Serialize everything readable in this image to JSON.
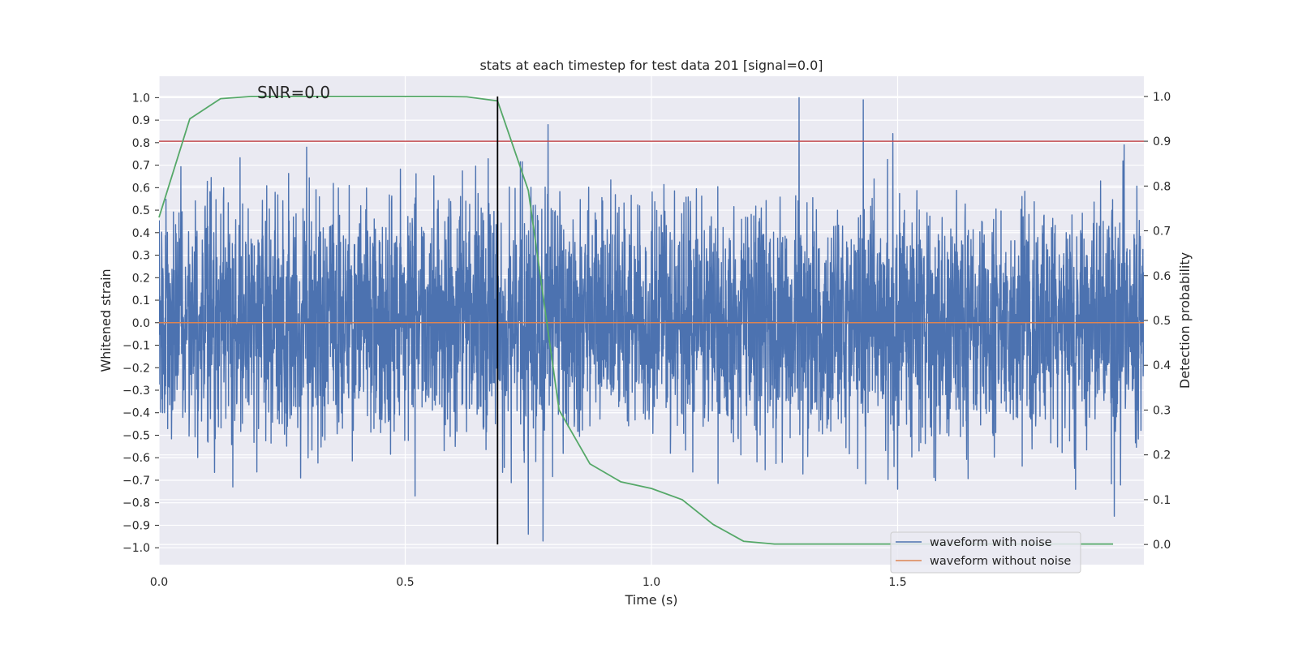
{
  "chart_data": {
    "type": "line",
    "title": "stats at each timestep for test data 201 [signal=0.0]",
    "xlabel": "Time (s)",
    "ylabel": "Whitened strain",
    "y2label": "Detection probability",
    "xlim": [
      0.0,
      2.0
    ],
    "ylim": [
      -1.075,
      1.095
    ],
    "y2lim": [
      -0.045,
      1.045
    ],
    "xticks": [
      0.0,
      0.5,
      1.0,
      1.5
    ],
    "xtick_labels": [
      "0.0",
      "0.5",
      "1.0",
      "1.5"
    ],
    "yticks": [
      1.0,
      0.9,
      0.8,
      0.7,
      0.6,
      0.5,
      0.4,
      0.3,
      0.2,
      0.1,
      0.0,
      -0.1,
      -0.2,
      -0.3,
      -0.4,
      -0.5,
      -0.6,
      -0.7,
      -0.8,
      -0.9,
      -1.0
    ],
    "ytick_labels": [
      "1.0",
      "0.9",
      "0.8",
      "0.7",
      "0.6",
      "0.5",
      "0.4",
      "0.3",
      "0.2",
      "0.1",
      "0.0",
      "−0.1",
      "−0.2",
      "−0.3",
      "−0.4",
      "−0.5",
      "−0.6",
      "−0.7",
      "−0.8",
      "−0.9",
      "−1.0"
    ],
    "y2ticks": [
      1.0,
      0.9,
      0.8,
      0.7,
      0.6,
      0.5,
      0.4,
      0.3,
      0.2,
      0.1,
      0.0
    ],
    "y2tick_labels": [
      "1.0",
      "0.9",
      "0.8",
      "0.7",
      "0.6",
      "0.5",
      "0.4",
      "0.3",
      "0.2",
      "0.1",
      "0.0"
    ],
    "grid": true,
    "legend_position": "bottom-right",
    "annotation": "SNR=0.0",
    "series": [
      {
        "name": "waveform with noise",
        "axis": "left",
        "color": "#4c72b0",
        "description": "dense noisy strain signal, roughly within -0.75..0.75 with spikes near ±1.0",
        "sample_rate": 2048,
        "amplitude_sd": 0.26,
        "spikes": [
          {
            "x": 0.79,
            "y": 0.88
          },
          {
            "x": 0.78,
            "y": -0.97
          },
          {
            "x": 0.75,
            "y": -0.94
          },
          {
            "x": 1.3,
            "y": 1.0
          },
          {
            "x": 1.43,
            "y": 0.99
          },
          {
            "x": 1.49,
            "y": 0.84
          },
          {
            "x": 1.5,
            "y": -0.74
          },
          {
            "x": 1.96,
            "y": 0.79
          },
          {
            "x": 1.94,
            "y": -0.86
          },
          {
            "x": 0.3,
            "y": 0.78
          },
          {
            "x": 0.15,
            "y": -0.73
          },
          {
            "x": 0.52,
            "y": -0.77
          }
        ]
      },
      {
        "name": "waveform without noise",
        "axis": "left",
        "color": "#dd8452",
        "x": [
          0.0,
          2.0
        ],
        "y": [
          0.0,
          0.0
        ]
      },
      {
        "name": "Detection probability",
        "axis": "right",
        "color": "#55a868",
        "x": [
          0.0,
          0.0625,
          0.125,
          0.1875,
          0.25,
          0.3125,
          0.375,
          0.4375,
          0.5,
          0.5625,
          0.625,
          0.6875,
          0.75,
          0.8125,
          0.875,
          0.9375,
          1.0,
          1.0625,
          1.125,
          1.1875,
          1.25,
          1.3125,
          1.375,
          1.4375,
          1.5,
          1.5625,
          1.625,
          1.6875,
          1.75,
          1.8125,
          1.875,
          1.9375
        ],
        "y": [
          0.73,
          0.95,
          0.995,
          1.0,
          1.0,
          1.0,
          1.0,
          1.0,
          1.0,
          1.0,
          0.999,
          0.99,
          0.79,
          0.3,
          0.18,
          0.14,
          0.125,
          0.1,
          0.045,
          0.007,
          0.001,
          0.001,
          0.001,
          0.001,
          0.001,
          0.001,
          0.001,
          0.001,
          0.001,
          0.001,
          0.001,
          0.001
        ]
      }
    ],
    "threshold_line": {
      "axis": "right",
      "y": 0.9,
      "color": "#c44e52"
    },
    "vertical_line": {
      "x": 0.6875,
      "y2_range": [
        0.0,
        1.0
      ],
      "color": "#000000"
    }
  }
}
